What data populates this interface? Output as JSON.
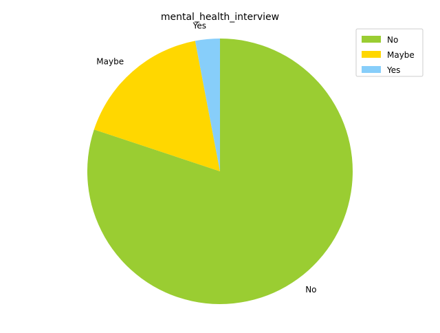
{
  "chart_data": {
    "type": "pie",
    "title": "mental_health_interview",
    "categories": [
      "No",
      "Maybe",
      "Yes"
    ],
    "values": [
      80.1,
      16.9,
      3.0
    ],
    "colors": [
      "#9acd32",
      "#ffd700",
      "#87cefa"
    ],
    "start_angle_deg": 90,
    "direction": "clockwise",
    "legend": {
      "position": "upper right",
      "entries": [
        "No",
        "Maybe",
        "Yes"
      ]
    }
  }
}
